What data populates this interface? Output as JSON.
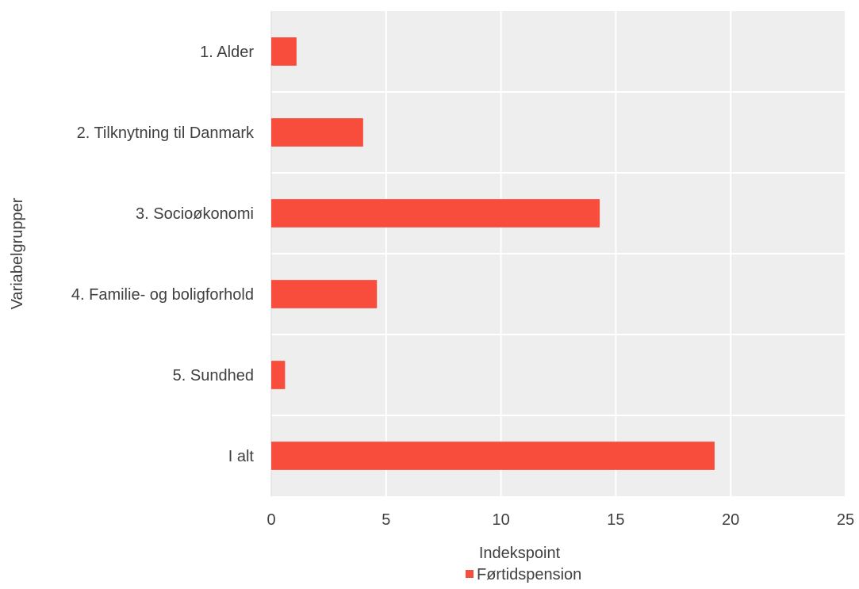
{
  "chart_data": {
    "type": "bar",
    "orientation": "horizontal",
    "categories": [
      "1. Alder",
      "2. Tilknytning til Danmark",
      "3. Socioøkonomi",
      "4. Familie- og boligforhold",
      "5. Sundhed",
      "I alt"
    ],
    "series": [
      {
        "name": "Førtidspension",
        "values": [
          1.1,
          4.0,
          14.3,
          4.6,
          0.6,
          19.3
        ],
        "color": "#f84c3c"
      }
    ],
    "xlabel": "Indekspoint",
    "ylabel": "Variabelgrupper",
    "xlim": [
      0,
      25
    ],
    "xticks": [
      0,
      5,
      10,
      15,
      20,
      25
    ],
    "grid": true,
    "plot_background": "#eeeeee",
    "gridline_color": "#ffffff",
    "legend_position": "bottom"
  }
}
